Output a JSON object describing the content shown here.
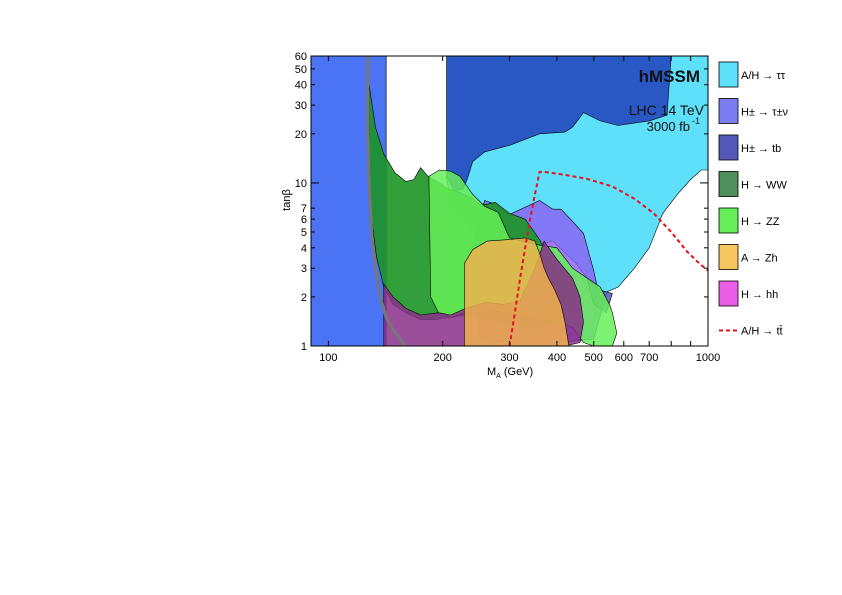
{
  "chart_data": {
    "type": "area",
    "title": "hMSSM",
    "subtitle_lines": [
      "LHC 14 TeV",
      "3000 fb",
      "-1"
    ],
    "xlabel_main": "M",
    "xlabel_sub": "A",
    "xlabel_unit": "(GeV)",
    "ylabel": "tanβ",
    "xscale": "log",
    "yscale": "log",
    "xlim": [
      90,
      1000
    ],
    "ylim": [
      1,
      60
    ],
    "x_ticks": [
      100,
      200,
      300,
      400,
      500,
      600,
      700,
      1000
    ],
    "x_tick_labels": [
      "100",
      "200",
      "300",
      "400",
      "500",
      "600",
      "700",
      "1000"
    ],
    "y_ticks": [
      1,
      2,
      3,
      4,
      5,
      6,
      7,
      10,
      20,
      30,
      40,
      50,
      60
    ],
    "y_tick_labels": [
      "1",
      "2",
      "3",
      "4",
      "5",
      "6",
      "7",
      "10",
      "20",
      "30",
      "40",
      "50",
      "60"
    ],
    "legend": [
      {
        "label": "A/H → ττ",
        "color": "#5fe0fa",
        "kind": "box"
      },
      {
        "label": "H± → τ±ν",
        "color": "#7b7ef2",
        "kind": "box"
      },
      {
        "label": "H± → tb",
        "color": "#5458b8",
        "kind": "box"
      },
      {
        "label": "H → WW",
        "color": "#4f8f5b",
        "kind": "box"
      },
      {
        "label": "H → ZZ",
        "color": "#66ef58",
        "kind": "box"
      },
      {
        "label": "A → Zh",
        "color": "#f7c65f",
        "kind": "box"
      },
      {
        "label": "H → hh",
        "color": "#e85fe6",
        "kind": "box"
      },
      {
        "label": "A/H → tt̄",
        "color": "#e8101a",
        "kind": "line"
      }
    ],
    "series": [
      {
        "color": "#4a74f4",
        "opacity": 1,
        "points": [
          [
            90,
            1
          ],
          [
            90,
            60
          ],
          [
            142,
            60
          ],
          [
            142,
            1
          ]
        ]
      },
      {
        "color": "#5fe0fa",
        "opacity": 1,
        "points": [
          [
            142,
            1
          ],
          [
            142,
            60
          ],
          [
            205,
            60
          ],
          [
            205,
            10.7
          ],
          [
            210,
            7.5
          ],
          [
            230,
            6
          ],
          [
            248,
            4.5
          ],
          [
            262,
            3.8
          ],
          [
            300,
            3.8
          ],
          [
            390,
            4.4
          ],
          [
            450,
            3.2
          ],
          [
            480,
            2.6
          ],
          [
            500,
            2.2
          ],
          [
            530,
            2.1
          ],
          [
            580,
            2.3
          ],
          [
            640,
            3
          ],
          [
            700,
            4
          ],
          [
            760,
            6.5
          ],
          [
            830,
            8.5
          ],
          [
            900,
            10.5
          ],
          [
            960,
            12
          ],
          [
            1000,
            12
          ],
          [
            1000,
            60
          ],
          [
            1000,
            60
          ],
          [
            142,
            60
          ]
        ]
      },
      {
        "color": "#2958c4",
        "opacity": 1,
        "points": [
          [
            205,
            60
          ],
          [
            205,
            11
          ],
          [
            214,
            9
          ],
          [
            226,
            9.1
          ],
          [
            232,
            10.5
          ],
          [
            240,
            13.5
          ],
          [
            258,
            15.5
          ],
          [
            300,
            17
          ],
          [
            360,
            20
          ],
          [
            420,
            20.5
          ],
          [
            440,
            22
          ],
          [
            470,
            27
          ],
          [
            520,
            24
          ],
          [
            580,
            22.5
          ],
          [
            700,
            24
          ],
          [
            780,
            26
          ],
          [
            800,
            60
          ]
        ]
      },
      {
        "color": "#8b5cf2",
        "opacity": 0.8,
        "points": [
          [
            240,
            4
          ],
          [
            258,
            7.8
          ],
          [
            275,
            7.4
          ],
          [
            300,
            6.4
          ],
          [
            360,
            7.8
          ],
          [
            390,
            6.9
          ],
          [
            410,
            6.9
          ],
          [
            440,
            5.8
          ],
          [
            470,
            4.9
          ],
          [
            500,
            2.9
          ],
          [
            520,
            1.9
          ],
          [
            540,
            2.1
          ],
          [
            500,
            1.1
          ],
          [
            400,
            1.05
          ],
          [
            300,
            1.05
          ],
          [
            250,
            1.1
          ],
          [
            240,
            4
          ]
        ]
      },
      {
        "color": "#5458b8",
        "opacity": 0.85,
        "points": [
          [
            480,
            2.6
          ],
          [
            520,
            2.2
          ],
          [
            560,
            2.1
          ],
          [
            540,
            1.6
          ],
          [
            500,
            1.8
          ],
          [
            480,
            2.6
          ]
        ]
      },
      {
        "color": "#1c9526",
        "opacity": 0.9,
        "points": [
          [
            128,
            40
          ],
          [
            133,
            22
          ],
          [
            140,
            15
          ],
          [
            150,
            11.5
          ],
          [
            160,
            10.2
          ],
          [
            168,
            10.5
          ],
          [
            175,
            12.4
          ],
          [
            183,
            11
          ],
          [
            196,
            10
          ],
          [
            206,
            9.2
          ],
          [
            214,
            9
          ],
          [
            226,
            8.6
          ],
          [
            240,
            8
          ],
          [
            250,
            7.4
          ],
          [
            262,
            7.4
          ],
          [
            275,
            7.6
          ],
          [
            300,
            6.5
          ],
          [
            330,
            6
          ],
          [
            360,
            4.5
          ],
          [
            380,
            3.5
          ],
          [
            400,
            2.9
          ],
          [
            420,
            2.8
          ],
          [
            440,
            2.5
          ],
          [
            455,
            2.2
          ],
          [
            460,
            1.9
          ],
          [
            440,
            1.7
          ],
          [
            400,
            1.45
          ],
          [
            350,
            1.3
          ],
          [
            300,
            1.4
          ],
          [
            250,
            1.5
          ],
          [
            230,
            1.55
          ],
          [
            210,
            1.5
          ],
          [
            190,
            1.45
          ],
          [
            175,
            1.45
          ],
          [
            160,
            1.6
          ],
          [
            148,
            1.8
          ],
          [
            140,
            2.3
          ],
          [
            134,
            3.5
          ],
          [
            130,
            6
          ],
          [
            128,
            12
          ],
          [
            128,
            40
          ]
        ]
      },
      {
        "color": "#66ef58",
        "opacity": 0.85,
        "points": [
          [
            184,
            11
          ],
          [
            196,
            12
          ],
          [
            210,
            11.8
          ],
          [
            222,
            11
          ],
          [
            240,
            8.5
          ],
          [
            258,
            7.2
          ],
          [
            280,
            6.6
          ],
          [
            300,
            4.6
          ],
          [
            350,
            4.2
          ],
          [
            400,
            4
          ],
          [
            440,
            3
          ],
          [
            470,
            2.7
          ],
          [
            520,
            2.3
          ],
          [
            550,
            1.8
          ],
          [
            560,
            1.6
          ],
          [
            575,
            1.2
          ],
          [
            560,
            1
          ],
          [
            500,
            1
          ],
          [
            470,
            1.05
          ],
          [
            440,
            1.3
          ],
          [
            400,
            1.4
          ],
          [
            360,
            1.45
          ],
          [
            330,
            1.5
          ],
          [
            300,
            1.6
          ],
          [
            260,
            1.65
          ],
          [
            230,
            1.6
          ],
          [
            210,
            1.5
          ],
          [
            195,
            1.6
          ],
          [
            186,
            2
          ],
          [
            184,
            11
          ]
        ]
      },
      {
        "color": "#8a2f88",
        "opacity": 0.85,
        "points": [
          [
            140,
            2.4
          ],
          [
            148,
            2
          ],
          [
            160,
            1.7
          ],
          [
            175,
            1.55
          ],
          [
            195,
            1.6
          ],
          [
            210,
            1.55
          ],
          [
            230,
            1.7
          ],
          [
            260,
            1.85
          ],
          [
            290,
            1.8
          ],
          [
            320,
            1.9
          ],
          [
            350,
            3
          ],
          [
            370,
            4.4
          ],
          [
            400,
            3.4
          ],
          [
            440,
            2.6
          ],
          [
            460,
            2
          ],
          [
            470,
            1.4
          ],
          [
            460,
            1.05
          ],
          [
            420,
            1
          ],
          [
            140,
            1
          ],
          [
            140,
            2.4
          ]
        ]
      },
      {
        "color": "#f0b14d",
        "opacity": 0.85,
        "points": [
          [
            228,
            1
          ],
          [
            228,
            3.2
          ],
          [
            240,
            3.9
          ],
          [
            262,
            4.4
          ],
          [
            300,
            4.5
          ],
          [
            330,
            4.6
          ],
          [
            350,
            4.4
          ],
          [
            360,
            3.7
          ],
          [
            370,
            3
          ],
          [
            380,
            2.6
          ],
          [
            395,
            2.2
          ],
          [
            410,
            1.8
          ],
          [
            420,
            1.4
          ],
          [
            430,
            1
          ],
          [
            228,
            1
          ]
        ]
      }
    ],
    "exclusion_line": {
      "color": "#e8101a",
      "points": [
        [
          300,
          1
        ],
        [
          310,
          1.6
        ],
        [
          320,
          2.6
        ],
        [
          330,
          4
        ],
        [
          340,
          6
        ],
        [
          350,
          8.5
        ],
        [
          360,
          11.7
        ],
        [
          380,
          11.6
        ],
        [
          420,
          11.2
        ],
        [
          480,
          10.6
        ],
        [
          560,
          9.5
        ],
        [
          640,
          8
        ],
        [
          720,
          6.5
        ],
        [
          800,
          5
        ],
        [
          880,
          3.8
        ],
        [
          950,
          3.2
        ],
        [
          1000,
          2.9
        ]
      ]
    },
    "lower_boundary": {
      "color": "#777777",
      "points": [
        [
          127,
          60
        ],
        [
          127,
          20
        ],
        [
          128,
          10
        ],
        [
          130,
          5
        ],
        [
          133,
          3
        ],
        [
          137,
          2
        ],
        [
          142,
          1.5
        ],
        [
          150,
          1.2
        ],
        [
          160,
          1
        ]
      ]
    }
  }
}
